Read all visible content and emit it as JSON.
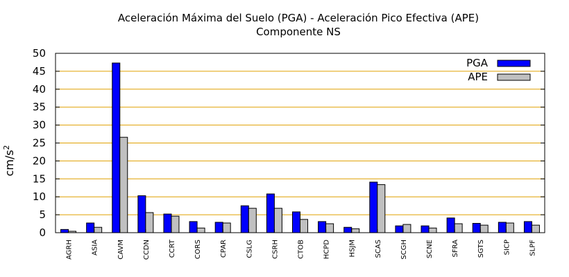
{
  "chart_data": {
    "type": "bar",
    "title": "Aceleración Máxima del Suelo (PGA) -  Aceleración Pico Efectiva (APE)",
    "subtitle": "Componente NS",
    "xlabel": "",
    "ylabel": "cm/s",
    "ylabel_exp": "2",
    "ylim": [
      0,
      50
    ],
    "yticks": [
      0,
      5,
      10,
      15,
      20,
      25,
      30,
      35,
      40,
      45,
      50
    ],
    "grid": true,
    "legend_position": "top-right",
    "categories": [
      "AGRH",
      "ASIA",
      "CAVM",
      "CCDN",
      "CCRT",
      "CORS",
      "CPAR",
      "CSLG",
      "CSRH",
      "CTOB",
      "HCPD",
      "HSJM",
      "SCAS",
      "SCGH",
      "SCNE",
      "SFRA",
      "SGTS",
      "SICP",
      "SLPF"
    ],
    "series": [
      {
        "name": "PGA",
        "color": "#0000ff",
        "values": [
          0.9,
          2.7,
          47.3,
          10.3,
          5.2,
          3.1,
          2.9,
          7.5,
          10.8,
          5.8,
          3.1,
          1.5,
          14.1,
          1.9,
          1.9,
          4.1,
          2.6,
          2.9,
          3.1
        ]
      },
      {
        "name": "APE",
        "color": "#c0c0c0",
        "values": [
          0.4,
          1.5,
          26.6,
          5.6,
          4.6,
          1.3,
          2.7,
          6.8,
          6.8,
          3.7,
          2.5,
          1.1,
          13.4,
          2.3,
          1.3,
          2.5,
          2.1,
          2.7,
          2.1
        ]
      }
    ]
  }
}
